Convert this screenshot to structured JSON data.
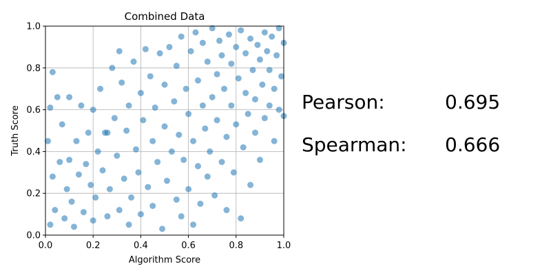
{
  "chart_data": {
    "type": "scatter",
    "title": "Combined Data",
    "xlabel": "Algorithm Score",
    "ylabel": "Truth Score",
    "xlim": [
      0,
      1
    ],
    "ylim": [
      0,
      1
    ],
    "xticks": [
      "0.0",
      "0.2",
      "0.4",
      "0.6",
      "0.8",
      "1.0"
    ],
    "yticks": [
      "0.0",
      "0.2",
      "0.4",
      "0.6",
      "0.8",
      "1.0"
    ],
    "grid": true,
    "marker_color": "#1f77b4",
    "marker_alpha": 0.55,
    "points": [
      [
        0.02,
        0.05
      ],
      [
        0.04,
        0.12
      ],
      [
        0.03,
        0.28
      ],
      [
        0.01,
        0.45
      ],
      [
        0.02,
        0.61
      ],
      [
        0.03,
        0.78
      ],
      [
        0.05,
        0.66
      ],
      [
        0.06,
        0.35
      ],
      [
        0.07,
        0.53
      ],
      [
        0.08,
        0.08
      ],
      [
        0.09,
        0.22
      ],
      [
        0.1,
        0.66
      ],
      [
        0.1,
        0.36
      ],
      [
        0.11,
        0.16
      ],
      [
        0.12,
        0.04
      ],
      [
        0.13,
        0.45
      ],
      [
        0.14,
        0.29
      ],
      [
        0.15,
        0.62
      ],
      [
        0.16,
        0.11
      ],
      [
        0.17,
        0.34
      ],
      [
        0.18,
        0.49
      ],
      [
        0.19,
        0.24
      ],
      [
        0.2,
        0.6
      ],
      [
        0.2,
        0.07
      ],
      [
        0.21,
        0.18
      ],
      [
        0.22,
        0.4
      ],
      [
        0.23,
        0.7
      ],
      [
        0.24,
        0.31
      ],
      [
        0.25,
        0.49
      ],
      [
        0.26,
        0.49
      ],
      [
        0.26,
        0.09
      ],
      [
        0.27,
        0.22
      ],
      [
        0.28,
        0.8
      ],
      [
        0.29,
        0.56
      ],
      [
        0.3,
        0.38
      ],
      [
        0.31,
        0.12
      ],
      [
        0.31,
        0.88
      ],
      [
        0.32,
        0.73
      ],
      [
        0.33,
        0.27
      ],
      [
        0.34,
        0.5
      ],
      [
        0.35,
        0.05
      ],
      [
        0.35,
        0.62
      ],
      [
        0.36,
        0.18
      ],
      [
        0.37,
        0.83
      ],
      [
        0.38,
        0.41
      ],
      [
        0.39,
        0.3
      ],
      [
        0.4,
        0.68
      ],
      [
        0.4,
        0.1
      ],
      [
        0.41,
        0.55
      ],
      [
        0.42,
        0.89
      ],
      [
        0.43,
        0.23
      ],
      [
        0.44,
        0.76
      ],
      [
        0.45,
        0.45
      ],
      [
        0.45,
        0.14
      ],
      [
        0.46,
        0.61
      ],
      [
        0.47,
        0.35
      ],
      [
        0.48,
        0.87
      ],
      [
        0.49,
        0.03
      ],
      [
        0.5,
        0.52
      ],
      [
        0.5,
        0.72
      ],
      [
        0.51,
        0.26
      ],
      [
        0.52,
        0.9
      ],
      [
        0.53,
        0.4
      ],
      [
        0.54,
        0.64
      ],
      [
        0.55,
        0.17
      ],
      [
        0.55,
        0.81
      ],
      [
        0.56,
        0.48
      ],
      [
        0.57,
        0.95
      ],
      [
        0.57,
        0.09
      ],
      [
        0.58,
        0.36
      ],
      [
        0.59,
        0.7
      ],
      [
        0.6,
        0.22
      ],
      [
        0.6,
        0.58
      ],
      [
        0.61,
        0.88
      ],
      [
        0.62,
        0.45
      ],
      [
        0.62,
        0.05
      ],
      [
        0.63,
        0.97
      ],
      [
        0.64,
        0.33
      ],
      [
        0.64,
        0.74
      ],
      [
        0.65,
        0.15
      ],
      [
        0.66,
        0.62
      ],
      [
        0.66,
        0.92
      ],
      [
        0.67,
        0.51
      ],
      [
        0.68,
        0.28
      ],
      [
        0.68,
        0.83
      ],
      [
        0.69,
        0.4
      ],
      [
        0.7,
        0.99
      ],
      [
        0.7,
        0.66
      ],
      [
        0.71,
        0.19
      ],
      [
        0.72,
        0.77
      ],
      [
        0.72,
        0.55
      ],
      [
        0.73,
        0.93
      ],
      [
        0.74,
        0.35
      ],
      [
        0.74,
        0.86
      ],
      [
        0.75,
        0.7
      ],
      [
        0.76,
        0.47
      ],
      [
        0.76,
        0.12
      ],
      [
        0.77,
        0.96
      ],
      [
        0.78,
        0.62
      ],
      [
        0.78,
        0.82
      ],
      [
        0.79,
        0.3
      ],
      [
        0.8,
        0.9
      ],
      [
        0.8,
        0.53
      ],
      [
        0.81,
        0.75
      ],
      [
        0.82,
        0.08
      ],
      [
        0.82,
        0.98
      ],
      [
        0.83,
        0.42
      ],
      [
        0.84,
        0.68
      ],
      [
        0.84,
        0.87
      ],
      [
        0.85,
        0.58
      ],
      [
        0.86,
        0.24
      ],
      [
        0.86,
        0.94
      ],
      [
        0.87,
        0.79
      ],
      [
        0.88,
        0.49
      ],
      [
        0.88,
        0.65
      ],
      [
        0.89,
        0.91
      ],
      [
        0.9,
        0.36
      ],
      [
        0.9,
        0.84
      ],
      [
        0.91,
        0.72
      ],
      [
        0.92,
        0.97
      ],
      [
        0.92,
        0.56
      ],
      [
        0.93,
        0.88
      ],
      [
        0.94,
        0.62
      ],
      [
        0.94,
        0.79
      ],
      [
        0.95,
        0.95
      ],
      [
        0.96,
        0.45
      ],
      [
        0.96,
        0.7
      ],
      [
        0.97,
        0.86
      ],
      [
        0.98,
        0.99
      ],
      [
        0.98,
        0.6
      ],
      [
        0.99,
        0.76
      ],
      [
        1.0,
        0.92
      ],
      [
        1.0,
        0.57
      ]
    ]
  },
  "stats": {
    "pearson_label": "Pearson:",
    "pearson_value": "0.695",
    "spearman_label": "Spearman:",
    "spearman_value": "0.666"
  }
}
